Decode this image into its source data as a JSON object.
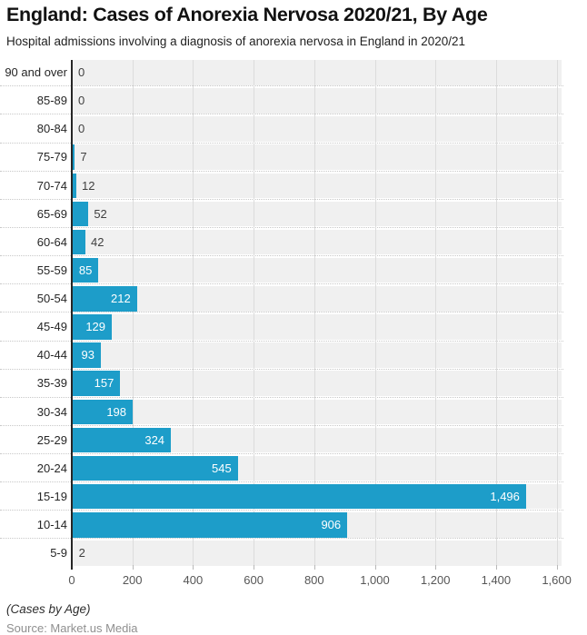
{
  "header": {
    "title": "England: Cases of Anorexia Nervosa 2020/21, By Age",
    "subtitle": "Hospital admissions involving a diagnosis of anorexia nervosa in England in 2020/21"
  },
  "footer": {
    "note": "(Cases by Age)",
    "source": "Source: Market.us Media"
  },
  "chart_data": {
    "type": "bar",
    "orientation": "horizontal",
    "title": "England: Cases of Anorexia Nervosa 2020/21, By Age",
    "subtitle": "Hospital admissions involving a diagnosis of anorexia nervosa in England in 2020/21",
    "categories": [
      "90 and over",
      "85-89",
      "80-84",
      "75-79",
      "70-74",
      "65-69",
      "60-64",
      "55-59",
      "50-54",
      "45-49",
      "40-44",
      "35-39",
      "30-34",
      "25-29",
      "20-24",
      "15-19",
      "10-14",
      "5-9"
    ],
    "values": [
      0,
      0,
      0,
      7,
      12,
      52,
      42,
      85,
      212,
      129,
      93,
      157,
      198,
      324,
      545,
      1496,
      906,
      2
    ],
    "value_labels": [
      "0",
      "0",
      "0",
      "7",
      "12",
      "52",
      "42",
      "85",
      "212",
      "129",
      "93",
      "157",
      "198",
      "324",
      "545",
      "1,496",
      "906",
      "2"
    ],
    "xlim": [
      0,
      1600
    ],
    "x_ticks": [
      0,
      200,
      400,
      600,
      800,
      1000,
      1200,
      1400,
      1600
    ],
    "x_tick_labels": [
      "0",
      "200",
      "400",
      "600",
      "800",
      "1,000",
      "1,200",
      "1,400",
      "1,600"
    ],
    "grid": true,
    "legend": "none",
    "colors": {
      "bar": "#1d9dc9",
      "band": "#f0f0f0",
      "gridline": "#dcdcdc",
      "axis": "#262626",
      "value_inside": "#ffffff",
      "value_outside": "#404040",
      "age_label": "#262626",
      "tick_label": "#565656"
    }
  }
}
